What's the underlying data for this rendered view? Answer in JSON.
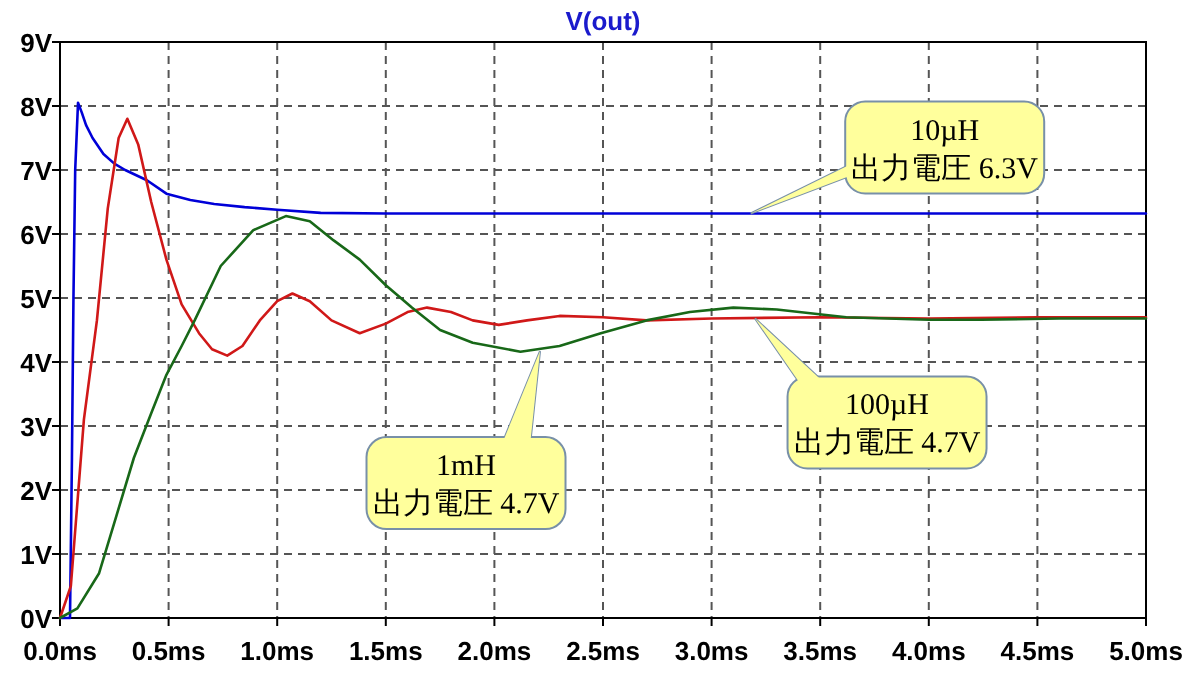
{
  "chart_data": {
    "type": "line",
    "title": "V(out)",
    "xlim": [
      0,
      5
    ],
    "ylim": [
      0,
      9
    ],
    "xticks": [
      {
        "value": 0,
        "label": "0.0ms"
      },
      {
        "value": 0.5,
        "label": "0.5ms"
      },
      {
        "value": 1,
        "label": "1.0ms"
      },
      {
        "value": 1.5,
        "label": "1.5ms"
      },
      {
        "value": 2,
        "label": "2.0ms"
      },
      {
        "value": 2.5,
        "label": "2.5ms"
      },
      {
        "value": 3,
        "label": "3.0ms"
      },
      {
        "value": 3.5,
        "label": "3.5ms"
      },
      {
        "value": 4,
        "label": "4.0ms"
      },
      {
        "value": 4.5,
        "label": "4.5ms"
      },
      {
        "value": 5,
        "label": "5.0ms"
      }
    ],
    "yticks": [
      {
        "value": 0,
        "label": "0V"
      },
      {
        "value": 1,
        "label": "1V"
      },
      {
        "value": 2,
        "label": "2V"
      },
      {
        "value": 3,
        "label": "3V"
      },
      {
        "value": 4,
        "label": "4V"
      },
      {
        "value": 5,
        "label": "5V"
      },
      {
        "value": 6,
        "label": "6V"
      },
      {
        "value": 7,
        "label": "7V"
      },
      {
        "value": 8,
        "label": "8V"
      },
      {
        "value": 9,
        "label": "9V"
      }
    ],
    "grid": true,
    "series": [
      {
        "color": "#0000d8",
        "x": [
          0,
          0.046,
          0.055,
          0.062,
          0.07,
          0.083,
          0.1,
          0.12,
          0.15,
          0.2,
          0.25,
          0.3,
          0.4,
          0.49,
          0.6,
          0.71,
          0.85,
          1.0,
          1.2,
          1.5,
          2,
          3,
          4,
          5
        ],
        "values": [
          0,
          0,
          2.5,
          5,
          7,
          8.05,
          7.9,
          7.7,
          7.5,
          7.25,
          7.1,
          7.0,
          6.84,
          6.63,
          6.53,
          6.47,
          6.42,
          6.38,
          6.33,
          6.32,
          6.32,
          6.32,
          6.32,
          6.32
        ]
      },
      {
        "color": "#d01818",
        "x": [
          0,
          0.05,
          0.11,
          0.17,
          0.22,
          0.27,
          0.31,
          0.36,
          0.42,
          0.49,
          0.56,
          0.64,
          0.7,
          0.77,
          0.84,
          0.92,
          1.0,
          1.07,
          1.15,
          1.25,
          1.38,
          1.5,
          1.6,
          1.69,
          1.8,
          1.9,
          2.02,
          2.15,
          2.3,
          2.5,
          2.7,
          3.0,
          3.5,
          4.0,
          4.5,
          5.0
        ],
        "values": [
          0,
          0.5,
          3.1,
          4.65,
          6.4,
          7.5,
          7.8,
          7.4,
          6.5,
          5.6,
          4.9,
          4.45,
          4.2,
          4.1,
          4.25,
          4.65,
          4.95,
          5.07,
          4.95,
          4.65,
          4.45,
          4.6,
          4.78,
          4.85,
          4.78,
          4.65,
          4.58,
          4.65,
          4.72,
          4.7,
          4.65,
          4.68,
          4.7,
          4.68,
          4.7,
          4.7
        ]
      },
      {
        "color": "#186818",
        "x": [
          0,
          0.08,
          0.18,
          0.26,
          0.34,
          0.42,
          0.49,
          0.56,
          0.62,
          0.74,
          0.89,
          1.04,
          1.15,
          1.26,
          1.38,
          1.5,
          1.62,
          1.75,
          1.9,
          2.12,
          2.3,
          2.49,
          2.7,
          2.9,
          3.1,
          3.3,
          3.62,
          4.0,
          4.24,
          4.6,
          5.0
        ],
        "values": [
          0,
          0.15,
          0.7,
          1.6,
          2.5,
          3.2,
          3.8,
          4.25,
          4.65,
          5.5,
          6.06,
          6.28,
          6.2,
          5.9,
          5.6,
          5.2,
          4.85,
          4.5,
          4.3,
          4.16,
          4.25,
          4.45,
          4.65,
          4.78,
          4.85,
          4.82,
          4.7,
          4.66,
          4.66,
          4.68,
          4.68
        ]
      }
    ],
    "annotations": [
      {
        "text": "10µH\n出力電圧 6.3V",
        "x": 3.18,
        "y": 6.32
      },
      {
        "text": "1mH\n出力電圧 4.7V",
        "x": 2.21,
        "y": 4.17
      },
      {
        "text": "100µH\n出力電圧 4.7V",
        "x": 3.2,
        "y": 4.68
      }
    ]
  }
}
